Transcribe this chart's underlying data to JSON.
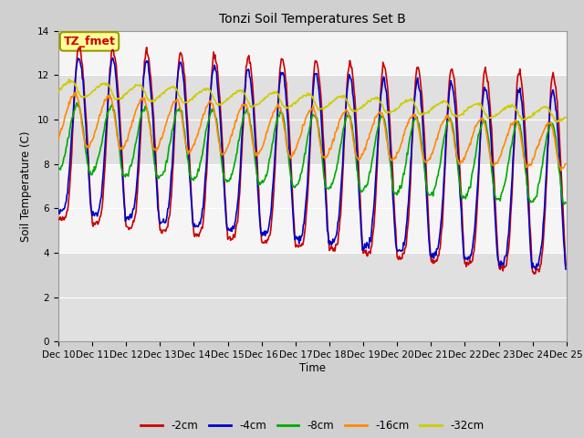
{
  "title": "Tonzi Soil Temperatures Set B",
  "xlabel": "Time",
  "ylabel": "Soil Temperature (C)",
  "ylim": [
    0,
    14
  ],
  "yticks": [
    0,
    2,
    4,
    6,
    8,
    10,
    12,
    14
  ],
  "xtick_labels": [
    "Dec 10",
    "Dec 11",
    "Dec 12",
    "Dec 13",
    "Dec 14",
    "Dec 15",
    "Dec 16",
    "Dec 17",
    "Dec 18",
    "Dec 19",
    "Dec 20",
    "Dec 21",
    "Dec 22",
    "Dec 23",
    "Dec 24",
    "Dec 25"
  ],
  "fig_bg": "#d0d0d0",
  "plot_bg": "#f5f5f5",
  "band_color": "#e0e0e0",
  "series": {
    "m2cm": {
      "color": "#cc0000",
      "label": "-2cm",
      "lw": 1.2
    },
    "m4cm": {
      "color": "#0000cc",
      "label": "-4cm",
      "lw": 1.2
    },
    "m8cm": {
      "color": "#00aa00",
      "label": "-8cm",
      "lw": 1.2
    },
    "m16cm": {
      "color": "#ff8800",
      "label": "-16cm",
      "lw": 1.2
    },
    "m32cm": {
      "color": "#cccc00",
      "label": "-32cm",
      "lw": 1.2
    }
  },
  "annotation_text": "TZ_fmet",
  "annotation_color": "#cc0000",
  "annotation_bg": "#ffff99",
  "annotation_border": "#999900"
}
